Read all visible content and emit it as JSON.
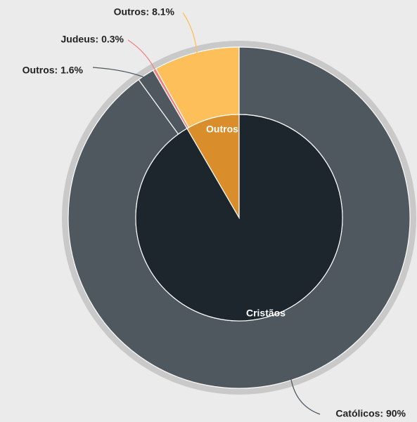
{
  "chart_data": {
    "type": "sunburst",
    "inner": {
      "categories": [
        "Cristãos",
        "Outros"
      ],
      "values": [
        91.6,
        8.4
      ],
      "colors": [
        "#1c262c",
        "#d98d2b"
      ]
    },
    "outer": {
      "values": [
        90,
        1.6,
        0.3,
        8.1
      ],
      "value_labels": [
        "Católicos: 90%",
        "Outros: 1.6%",
        "Judeus: 0.3%",
        "Outros:  8.1%"
      ],
      "colors": [
        "#4e585e",
        "#4e585e",
        "#f08080",
        "#fdbf5a"
      ]
    }
  }
}
